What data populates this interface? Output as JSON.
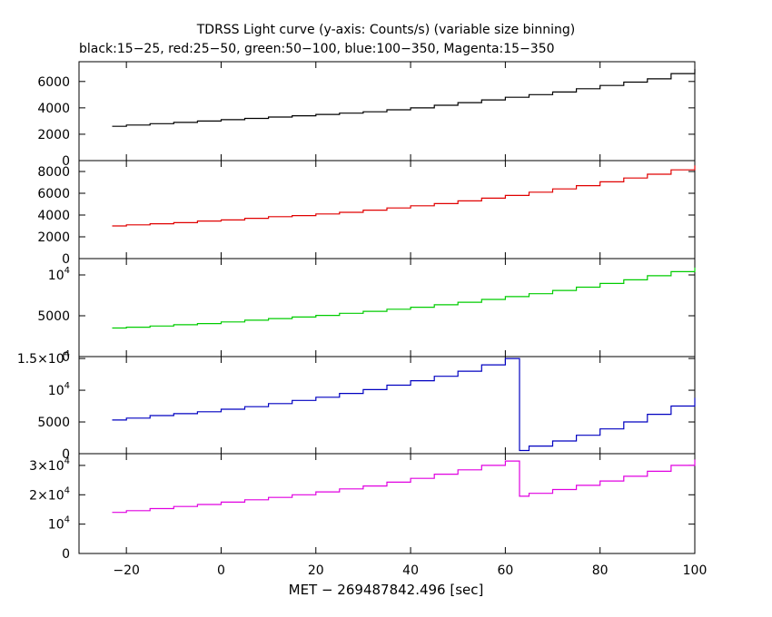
{
  "title": "TDRSS Light curve (y-axis: Counts/s) (variable size binning)",
  "subtitle": "black:15−25, red:25−50, green:50−100, blue:100−350, Magenta:15−350",
  "xlabel": "MET − 269487842.496 [sec]",
  "chart_data": [
    {
      "type": "line",
      "series": [
        {
          "name": "black:15−25",
          "color": "#000000",
          "step": true,
          "x": [
            -23,
            -20,
            -15,
            -10,
            -5,
            0,
            5,
            10,
            15,
            20,
            25,
            30,
            35,
            40,
            45,
            50,
            55,
            60,
            65,
            70,
            75,
            80,
            85,
            90,
            95,
            100
          ],
          "y": [
            2600,
            2700,
            2800,
            2900,
            3000,
            3100,
            3200,
            3300,
            3400,
            3500,
            3600,
            3700,
            3850,
            4000,
            4200,
            4400,
            4600,
            4800,
            5000,
            5200,
            5450,
            5700,
            5950,
            6200,
            6600,
            6950
          ]
        }
      ],
      "xlim": [
        -30,
        100
      ],
      "ylim": [
        0,
        7500
      ],
      "yticks": [
        0,
        2000,
        4000,
        6000
      ],
      "ytick_labels": [
        "0",
        "2000",
        "4000",
        "6000"
      ]
    },
    {
      "type": "line",
      "series": [
        {
          "name": "red:25−50",
          "color": "#e00000",
          "step": true,
          "x": [
            -23,
            -20,
            -15,
            -10,
            -5,
            0,
            5,
            10,
            15,
            20,
            25,
            30,
            35,
            40,
            45,
            50,
            55,
            60,
            65,
            70,
            75,
            80,
            85,
            90,
            95,
            100
          ],
          "y": [
            3000,
            3100,
            3200,
            3300,
            3450,
            3550,
            3700,
            3850,
            3950,
            4100,
            4250,
            4450,
            4650,
            4850,
            5050,
            5300,
            5550,
            5800,
            6100,
            6400,
            6700,
            7050,
            7400,
            7750,
            8150,
            8550
          ]
        }
      ],
      "xlim": [
        -30,
        100
      ],
      "ylim": [
        0,
        9000
      ],
      "yticks": [
        0,
        2000,
        4000,
        6000,
        8000
      ],
      "ytick_labels": [
        "0",
        "2000",
        "4000",
        "6000",
        "8000"
      ]
    },
    {
      "type": "line",
      "series": [
        {
          "name": "green:50−100",
          "color": "#00cc00",
          "step": true,
          "x": [
            -23,
            -20,
            -15,
            -10,
            -5,
            0,
            5,
            10,
            15,
            20,
            25,
            30,
            35,
            40,
            45,
            50,
            55,
            60,
            65,
            70,
            75,
            80,
            85,
            90,
            95,
            100
          ],
          "y": [
            3500,
            3600,
            3750,
            3900,
            4050,
            4250,
            4450,
            4650,
            4850,
            5050,
            5300,
            5550,
            5800,
            6050,
            6350,
            6650,
            7000,
            7350,
            7700,
            8100,
            8500,
            8950,
            9400,
            9900,
            10400,
            10900
          ]
        }
      ],
      "xlim": [
        -30,
        100
      ],
      "ylim": [
        0,
        12000
      ],
      "yticks": [
        0,
        5000,
        10000
      ],
      "ytick_labels": [
        "0",
        "5000",
        "10^4"
      ]
    },
    {
      "type": "line",
      "series": [
        {
          "name": "blue:100−350",
          "color": "#0000c0",
          "step": true,
          "x": [
            -23,
            -20,
            -15,
            -10,
            -5,
            0,
            5,
            10,
            15,
            20,
            25,
            30,
            35,
            40,
            45,
            50,
            55,
            60,
            63,
            65,
            70,
            75,
            80,
            85,
            90,
            95,
            100
          ],
          "y": [
            5300,
            5600,
            6000,
            6300,
            6600,
            7000,
            7400,
            7900,
            8400,
            8900,
            9500,
            10100,
            10800,
            11500,
            12200,
            13000,
            14000,
            15000,
            500,
            1200,
            2000,
            2900,
            3900,
            5000,
            6200,
            7500,
            8800
          ]
        }
      ],
      "xlim": [
        -30,
        100
      ],
      "ylim": [
        0,
        15300
      ],
      "yticks": [
        0,
        5000,
        10000,
        15000
      ],
      "ytick_labels": [
        "0",
        "5000",
        "10^4",
        "1.5×10^4"
      ]
    },
    {
      "type": "line",
      "series": [
        {
          "name": "Magenta:15−350",
          "color": "#e000e0",
          "step": true,
          "x": [
            -23,
            -20,
            -15,
            -10,
            -5,
            0,
            5,
            10,
            15,
            20,
            25,
            30,
            35,
            40,
            45,
            50,
            55,
            60,
            63,
            65,
            70,
            75,
            80,
            85,
            90,
            95,
            100
          ],
          "y": [
            14000,
            14600,
            15300,
            16000,
            16700,
            17500,
            18300,
            19100,
            20000,
            21000,
            22000,
            23000,
            24300,
            25600,
            27000,
            28500,
            30000,
            31500,
            19500,
            20500,
            21800,
            23200,
            24700,
            26300,
            28000,
            30000,
            32000
          ]
        }
      ],
      "xlim": [
        -30,
        100
      ],
      "ylim": [
        0,
        34000
      ],
      "yticks": [
        0,
        10000,
        20000,
        30000
      ],
      "ytick_labels": [
        "0",
        "10^4",
        "2×10^4",
        "3×10^4"
      ]
    }
  ],
  "xticks": [
    -20,
    0,
    20,
    40,
    60,
    80,
    100
  ],
  "xtick_labels": [
    "−20",
    "0",
    "20",
    "40",
    "60",
    "80",
    "100"
  ]
}
